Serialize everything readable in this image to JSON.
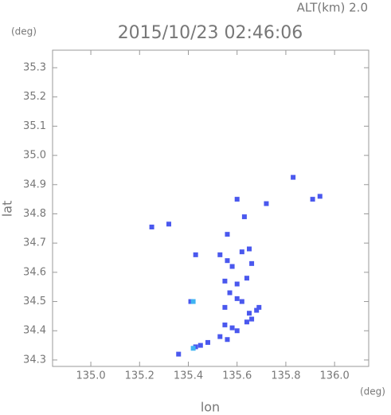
{
  "chart_data": {
    "type": "scatter",
    "title": "2015/10/23 02:46:06",
    "subtitle": "ALT(km) 2.0",
    "y_unit": "(deg)",
    "x_unit": "(deg)",
    "x_label": "lon",
    "y_label": "lat",
    "xlim": [
      134.843,
      136.14
    ],
    "ylim": [
      34.278,
      35.36
    ],
    "xticks": [
      {
        "value": 135,
        "label": "135.0"
      },
      135.2,
      135.4,
      135.6,
      135.8,
      {
        "value": 136,
        "label": "136.0"
      }
    ],
    "yticks": [
      34.3,
      34.4,
      34.5,
      34.6,
      34.7,
      34.8,
      34.9,
      {
        "value": 35,
        "label": "35.0"
      },
      35.1,
      35.2,
      35.3
    ],
    "series": [
      {
        "color": "#4a58ee",
        "x": [
          135.25,
          135.32,
          135.83,
          135.91,
          135.94,
          135.6,
          135.72,
          135.63,
          135.56,
          135.43,
          135.53,
          135.56,
          135.62,
          135.65,
          135.66,
          135.58,
          135.55,
          135.6,
          135.64,
          135.57,
          135.6,
          135.55,
          135.62,
          135.65,
          135.68,
          135.66,
          135.69,
          135.55,
          135.58,
          135.6,
          135.53,
          135.56,
          135.48,
          135.45,
          135.43,
          135.36,
          135.41,
          135.64
        ],
        "values": [
          34.755,
          34.765,
          34.925,
          34.85,
          34.86,
          34.85,
          34.835,
          34.79,
          34.73,
          34.66,
          34.66,
          34.64,
          34.67,
          34.68,
          34.63,
          34.62,
          34.57,
          34.56,
          34.58,
          34.53,
          34.51,
          34.48,
          34.5,
          34.46,
          34.47,
          34.44,
          34.48,
          34.42,
          34.41,
          34.4,
          34.38,
          34.37,
          34.36,
          34.35,
          34.345,
          34.32,
          34.5,
          34.43
        ]
      },
      {
        "color": "#3fb4f2",
        "x": [
          135.42,
          135.42
        ],
        "values": [
          34.5,
          34.34
        ]
      }
    ]
  }
}
